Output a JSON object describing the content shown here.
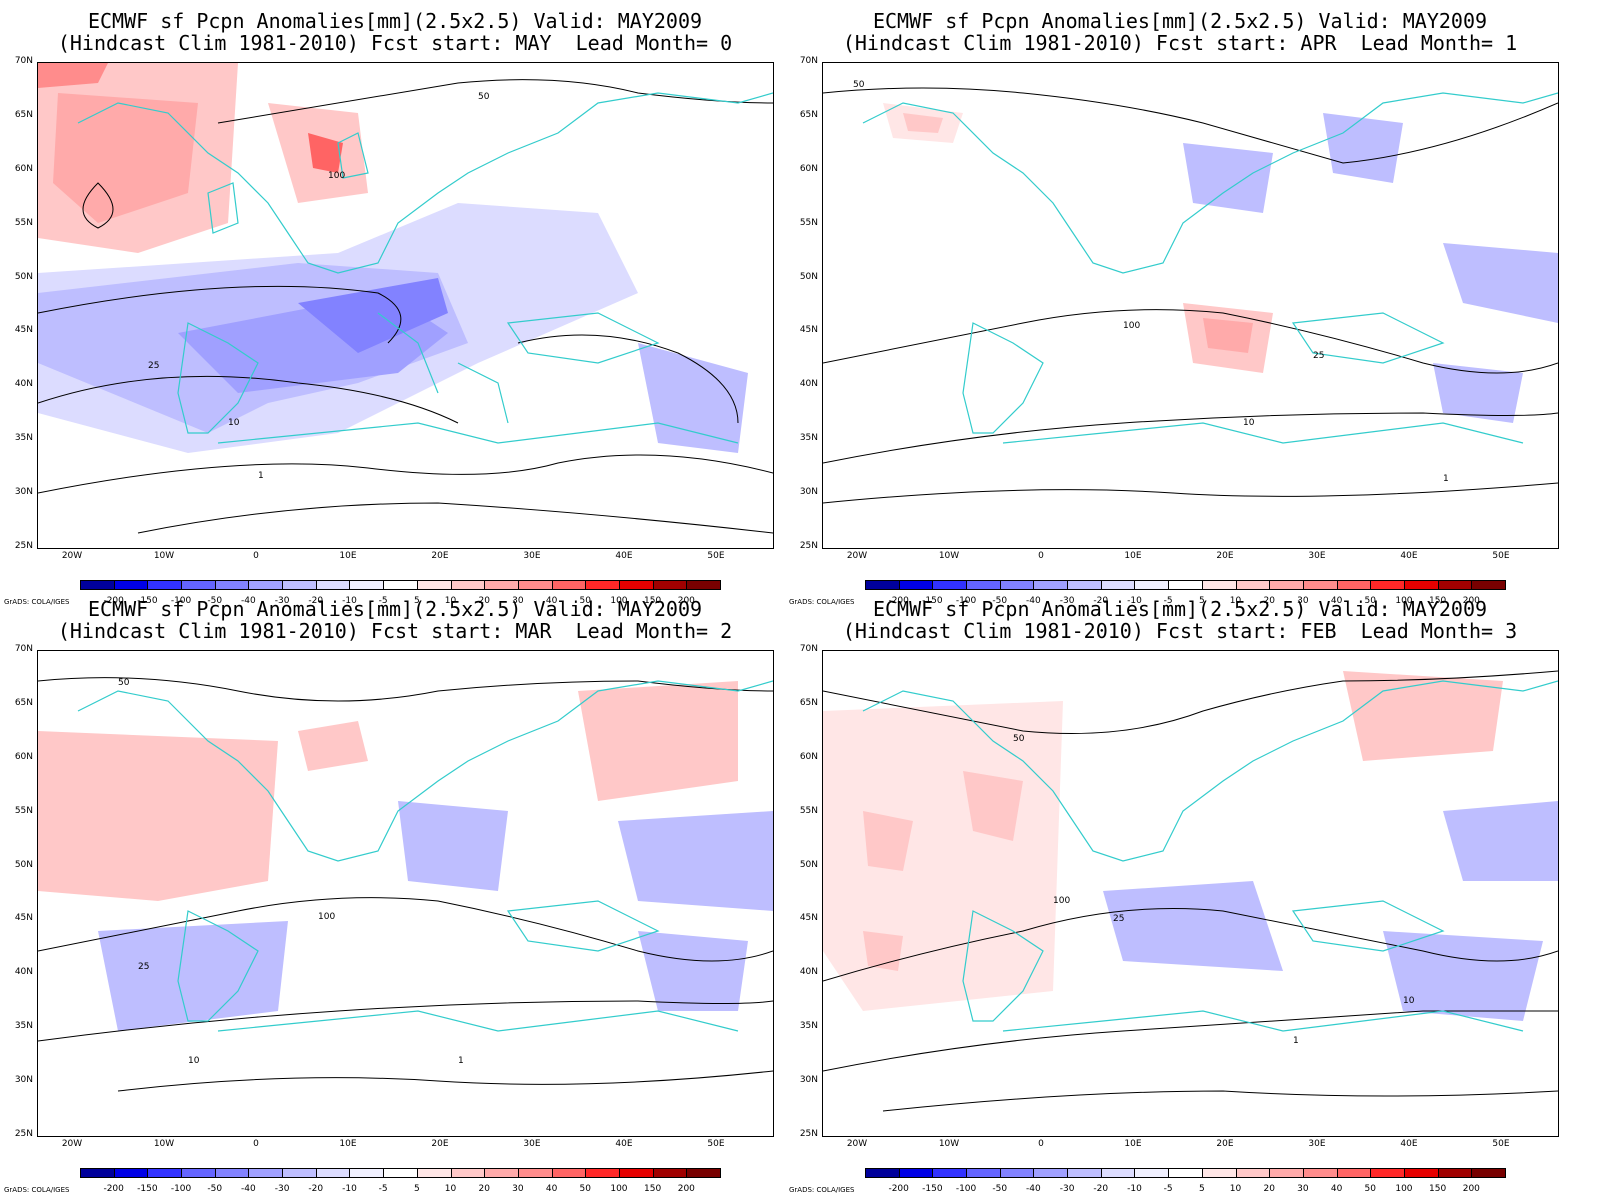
{
  "panels": [
    {
      "title1": "ECMWF sf Pcpn Anomalies[mm](2.5x2.5) Valid: MAY2009",
      "title2": "(Hindcast Clim 1981-2010) Fcst start: MAY  Lead Month= 0"
    },
    {
      "title1": "ECMWF sf Pcpn Anomalies[mm](2.5x2.5) Valid: MAY2009",
      "title2": "(Hindcast Clim 1981-2010) Fcst start: APR  Lead Month= 1"
    },
    {
      "title1": "ECMWF sf Pcpn Anomalies[mm](2.5x2.5) Valid: MAY2009",
      "title2": "(Hindcast Clim 1981-2010) Fcst start: MAR  Lead Month= 2"
    },
    {
      "title1": "ECMWF sf Pcpn Anomalies[mm](2.5x2.5) Valid: MAY2009",
      "title2": "(Hindcast Clim 1981-2010) Fcst start: FEB  Lead Month= 3"
    }
  ],
  "lat_ticks": [
    "70N",
    "65N",
    "60N",
    "55N",
    "50N",
    "45N",
    "40N",
    "35N",
    "30N",
    "25N"
  ],
  "lon_ticks": [
    "20W",
    "10W",
    "0",
    "10E",
    "20E",
    "30E",
    "40E",
    "50E"
  ],
  "colorbar": {
    "labels": [
      "-200",
      "-150",
      "-100",
      "-50",
      "-40",
      "-30",
      "-20",
      "-10",
      "-5",
      "5",
      "10",
      "20",
      "30",
      "40",
      "50",
      "100",
      "150",
      "200"
    ],
    "colors": [
      "#00009b",
      "#0000e6",
      "#3232ff",
      "#6464ff",
      "#8282ff",
      "#a0a0ff",
      "#bebeff",
      "#dcdcff",
      "#f0f0ff",
      "#ffffff",
      "#ffe6e6",
      "#ffc8c8",
      "#ffaaaa",
      "#ff8c8c",
      "#ff6464",
      "#ff2828",
      "#e60000",
      "#a00000",
      "#780000"
    ]
  },
  "credit": "GrADS: COLA/IGES",
  "contour_labels": [
    "100",
    "50",
    "25",
    "10",
    "1"
  ],
  "colors": {
    "coast": "#33cccc",
    "contour": "#000000"
  }
}
